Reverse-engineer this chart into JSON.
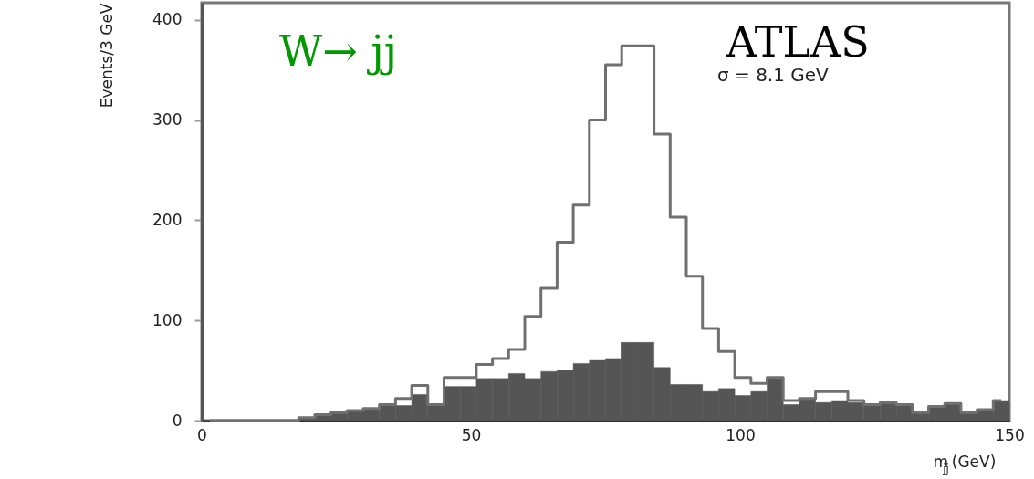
{
  "chart_data": {
    "type": "histogram",
    "xlabel": "m$_{jj}$ (GeV)",
    "ylabel": "Events/3 GeV",
    "annotations": [
      "W→ jj",
      "ATLAS",
      "σ = 8.1 GeV"
    ],
    "bins": [
      0,
      3,
      6,
      9,
      12,
      15,
      18,
      21,
      24,
      27,
      30,
      33,
      36,
      39,
      42,
      45,
      48,
      51,
      54,
      57,
      60,
      63,
      66,
      69,
      72,
      75,
      78,
      81,
      84,
      87,
      90,
      93,
      96,
      99,
      102,
      105,
      108,
      111,
      114,
      117,
      120,
      123,
      126,
      129,
      132,
      135,
      138,
      141,
      144,
      147,
      150
    ],
    "series": [
      {
        "type": "step",
        "color": "#707070",
        "x": [
          1.5,
          4.5,
          7.5,
          10.5,
          13.5,
          16.5,
          19.5,
          22.5,
          25.5,
          28.5,
          31.5,
          34.5,
          37.5,
          40.5,
          43.5,
          46.5,
          49.5,
          52.5,
          55.5,
          58.5,
          61.5,
          64.5,
          67.5,
          70.5,
          73.5,
          76.5,
          79.5,
          82.5,
          85.5,
          88.5,
          91.5,
          94.5,
          97.5,
          100.5,
          103.5,
          106.5,
          109.5,
          112.5,
          115.5,
          118.5,
          121.5,
          124.5,
          127.5,
          130.5,
          133.5,
          136.5,
          139.5,
          142.5,
          145.5,
          148.5
        ],
        "values": [
          0,
          0,
          0,
          0,
          0,
          0,
          3,
          6,
          8,
          10,
          12,
          16,
          22,
          35,
          16,
          43,
          43,
          56,
          62,
          71,
          104,
          132,
          178,
          215,
          300,
          355,
          374,
          374,
          286,
          203,
          144,
          92,
          69,
          43,
          37,
          43,
          20,
          22,
          29,
          29,
          20,
          16,
          18,
          16,
          8,
          14,
          17,
          8,
          11,
          20
        ]
      },
      {
        "color": "#555555",
        "values": [
          0,
          0,
          0,
          0,
          0,
          0,
          3,
          6,
          8,
          10,
          12,
          16,
          15,
          26,
          16,
          34,
          34,
          42,
          42,
          47,
          42,
          49,
          50,
          57,
          60,
          62,
          78,
          78,
          53,
          36,
          36,
          29,
          32,
          25,
          29,
          43,
          16,
          22,
          18,
          20,
          18,
          16,
          18,
          16,
          8,
          14,
          17,
          8,
          11,
          20
        ]
      }
    ],
    "xlim": [
      0,
      150
    ],
    "xticks": [
      0,
      50,
      100,
      150
    ],
    "ylim": [
      0,
      417
    ],
    "yticks": [
      0,
      100,
      200,
      300,
      400
    ],
    "grid": false
  }
}
